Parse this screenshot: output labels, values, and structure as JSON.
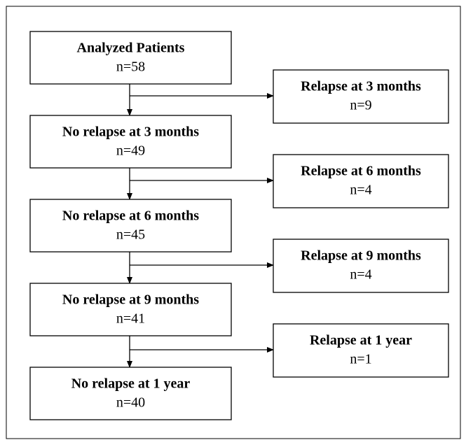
{
  "nodes": [
    {
      "label": "Analyzed Patients",
      "count": "n=58"
    },
    {
      "label": "No relapse at 3 months",
      "count": "n=49"
    },
    {
      "label": "No relapse at 6 months",
      "count": "n=45"
    },
    {
      "label": "No relapse at 9 months",
      "count": "n=41"
    },
    {
      "label": "No relapse at 1 year",
      "count": "n=40"
    }
  ],
  "branches": [
    {
      "label": "Relapse at 3 months",
      "count": "n=9"
    },
    {
      "label": "Relapse at 6 months",
      "count": "n=4"
    },
    {
      "label": "Relapse at 9 months",
      "count": "n=4"
    },
    {
      "label": "Relapse at 1 year",
      "count": "n=1"
    }
  ]
}
